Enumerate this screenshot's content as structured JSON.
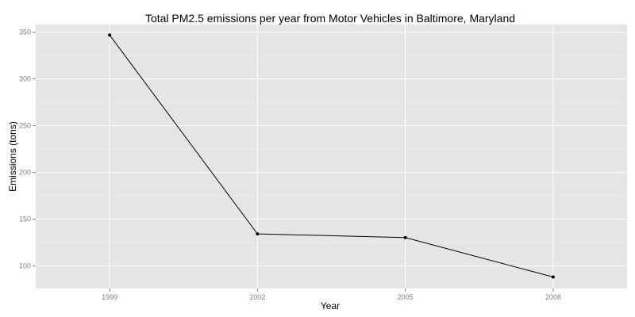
{
  "chart_data": {
    "type": "line",
    "title": "Total PM2.5 emissions per year from Motor Vehicles in Baltimore, Maryland",
    "xlabel": "Year",
    "ylabel": "Emissions (tons)",
    "x": [
      1999,
      2002,
      2005,
      2008
    ],
    "x_tick_labels": [
      "1999",
      "2002",
      "2005",
      "2008"
    ],
    "series": [
      {
        "values": [
          346.8,
          134.3,
          130.4,
          88.3
        ]
      }
    ],
    "y_ticks": [
      100,
      150,
      200,
      250,
      300,
      350
    ],
    "y_tick_labels": [
      "100",
      "150",
      "200",
      "250",
      "300",
      "350"
    ],
    "xlim": [
      1997.5,
      2009.5
    ],
    "ylim": [
      76,
      358
    ],
    "grid": true,
    "legend": "none",
    "colors": {
      "panel_background": "#e5e5e5",
      "grid_major": "#ffffff",
      "grid_minor": "#f2f2f2",
      "line": "#000000",
      "point": "#000000",
      "tick_label": "#7f7f7f"
    }
  }
}
